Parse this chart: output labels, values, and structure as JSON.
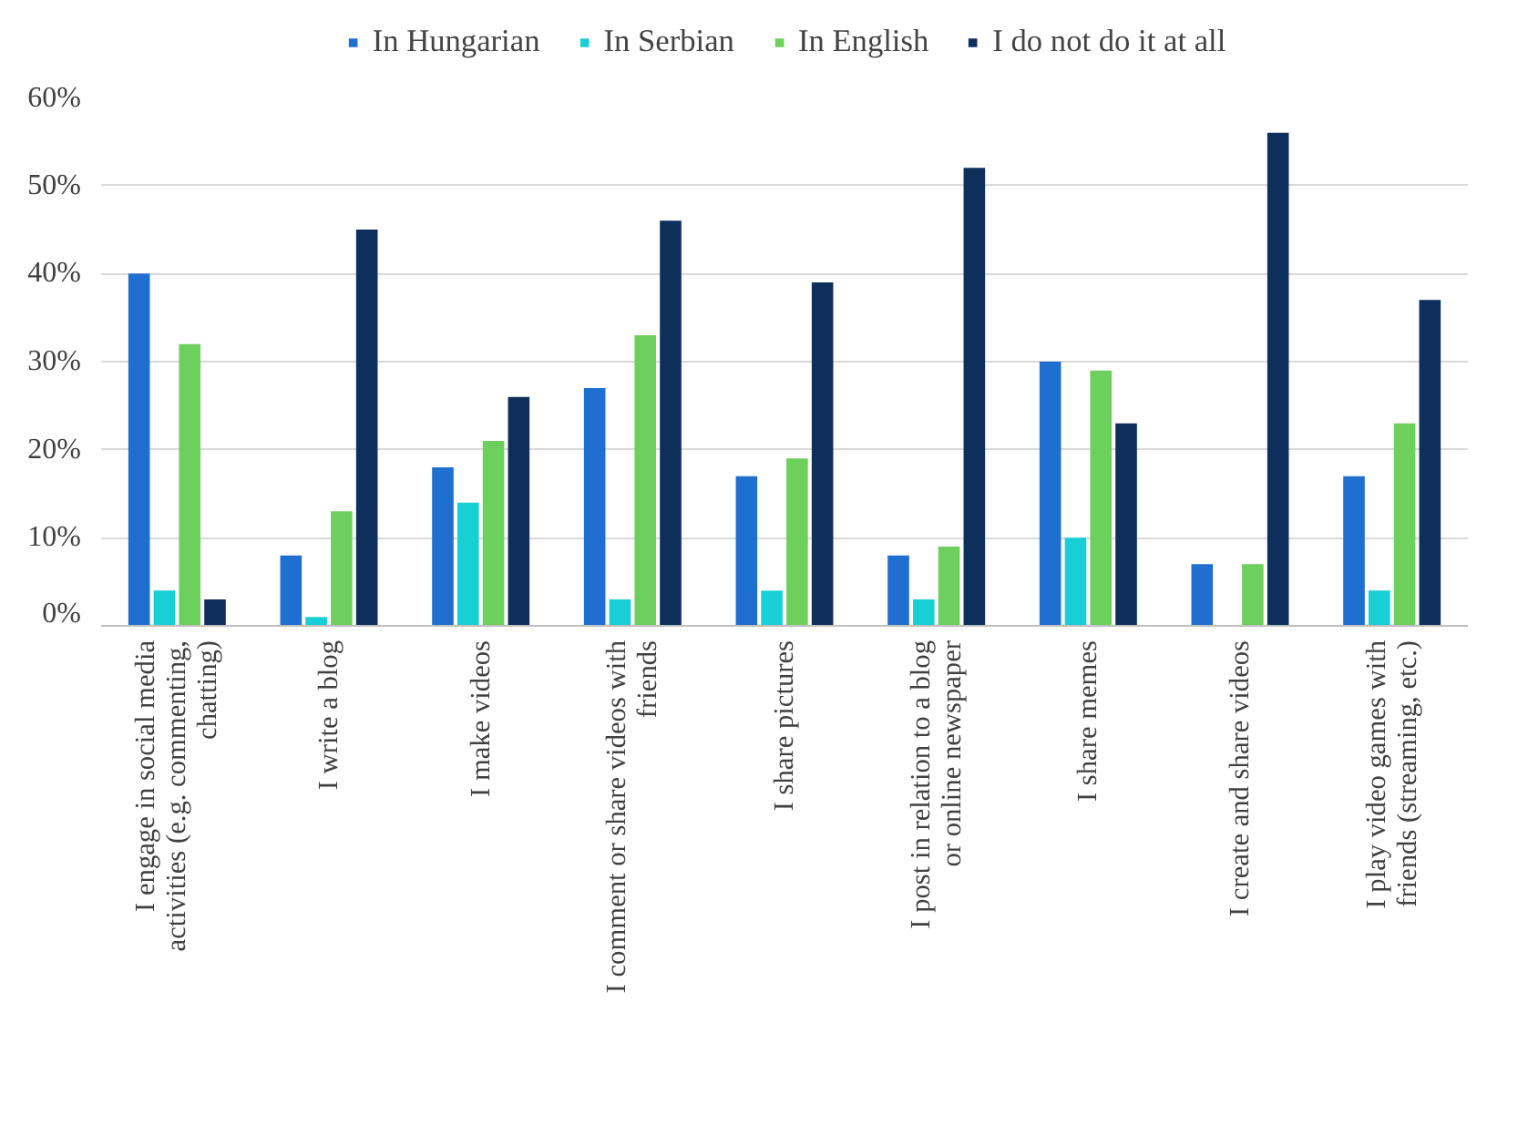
{
  "chart_data": {
    "type": "bar",
    "categories": [
      "I engage in social media activities (e.g. commenting, chatting)",
      "I write a blog",
      "I make videos",
      "I comment or share videos with friends",
      "I share pictures",
      "I post in relation to a blog or online newspaper",
      "I share memes",
      "I create and share videos",
      "I play video games with friends (streaming, etc.)"
    ],
    "series": [
      {
        "name": "In Hungarian",
        "color": "#1f6fd0",
        "values": [
          40,
          8,
          18,
          27,
          17,
          8,
          30,
          7,
          17
        ]
      },
      {
        "name": "In Serbian",
        "color": "#19cfd6",
        "values": [
          4,
          1,
          14,
          3,
          4,
          3,
          10,
          0,
          4
        ]
      },
      {
        "name": "In English",
        "color": "#6dcf5c",
        "values": [
          32,
          13,
          21,
          33,
          19,
          9,
          29,
          7,
          23
        ]
      },
      {
        "name": "I do not do it at all",
        "color": "#0e2f5c",
        "values": [
          3,
          45,
          26,
          46,
          39,
          52,
          23,
          56,
          37
        ]
      }
    ],
    "ylim": [
      0,
      60
    ],
    "yticks": [
      {
        "value": 0,
        "label": "0%"
      },
      {
        "value": 10,
        "label": "10%"
      },
      {
        "value": 20,
        "label": "20%"
      },
      {
        "value": 30,
        "label": "30%"
      },
      {
        "value": 40,
        "label": "40%"
      },
      {
        "value": 50,
        "label": "50%"
      },
      {
        "value": 60,
        "label": "60%"
      }
    ],
    "grid": "y",
    "legend": "top"
  }
}
